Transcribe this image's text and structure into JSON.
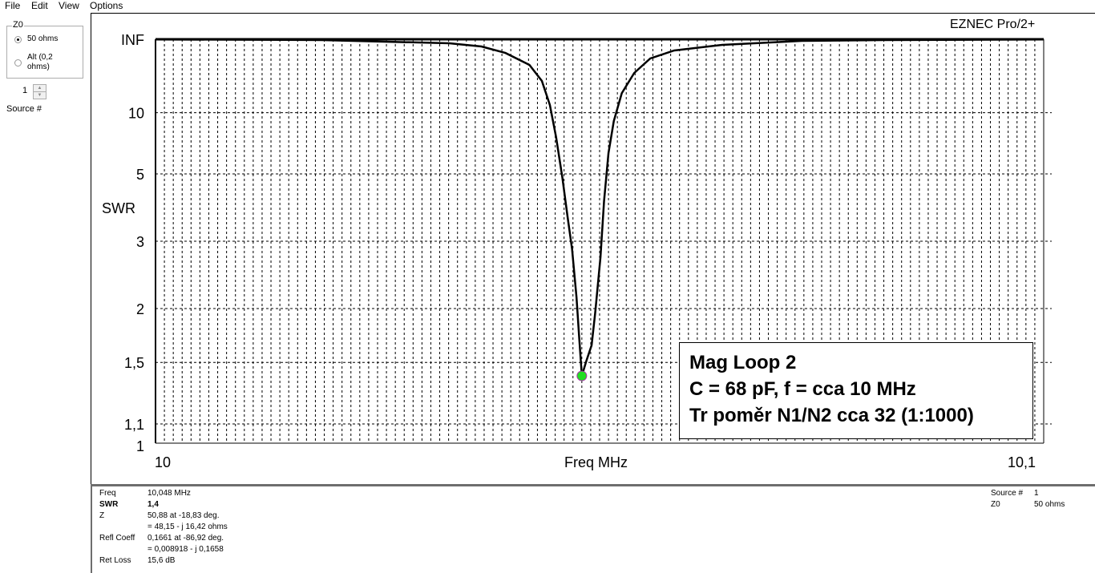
{
  "menu": [
    "File",
    "Edit",
    "View",
    "Options"
  ],
  "z0_panel": {
    "title": "Z0",
    "option_50": "50 ohms",
    "option_alt": "Alt (0,2 ohms)",
    "selected": "50 ohms",
    "source_value": "1",
    "source_label": "Source #"
  },
  "plot": {
    "brand": "EZNEC Pro/2+"
  },
  "annotation": [
    "Mag Loop 2",
    "C = 68 pF, f = cca 10 MHz",
    "Tr poměr N1/N2 cca 32 (1:1000)"
  ],
  "info": {
    "freq_label": "Freq",
    "freq": "10,048 MHz",
    "swr_label": "SWR",
    "swr": "1,4",
    "z_label": "Z",
    "z_polar": "50,88 at -18,83 deg.",
    "z_rect": "= 48,15 - j 16,42 ohms",
    "refl_label": "Refl Coeff",
    "refl_polar": "0,1661 at -86,92 deg.",
    "refl_rect": "= 0,008918 - j 0,1658",
    "retloss_label": "Ret Loss",
    "retloss": "15,6 dB",
    "source_label": "Source #",
    "source": "1",
    "z0_label": "Z0",
    "z0": "50 ohms"
  },
  "chart_data": {
    "type": "line",
    "xlabel": "Freq MHz",
    "ylabel": "SWR",
    "xlim": [
      10.0,
      10.1
    ],
    "x_tick_labels": [
      "10",
      "10,1"
    ],
    "y_ticks": [
      1,
      1.1,
      1.5,
      2,
      3,
      5,
      10,
      "INF"
    ],
    "y_tick_labels": [
      "1",
      "1,1",
      "1,5",
      "2",
      "3",
      "5",
      "10",
      "INF"
    ],
    "y_scale": "reflection-coefficient",
    "grid": true,
    "line_color": "#000000",
    "marker": {
      "x": 10.048,
      "y": 1.4,
      "color": "#22dd22"
    },
    "x": [
      10.0,
      10.0187,
      10.0331,
      10.0367,
      10.0394,
      10.0421,
      10.0435,
      10.0444,
      10.0451,
      10.0458,
      10.0464,
      10.0469,
      10.0474,
      10.0477,
      10.048,
      10.0485,
      10.0491,
      10.0495,
      10.0501,
      10.0505,
      10.051,
      10.0516,
      10.0525,
      10.0539,
      10.0557,
      10.0584,
      10.0638,
      10.0728,
      10.0819,
      10.1
    ],
    "y": [
      5000,
      1000,
      201,
      111,
      58,
      30.5,
      18.4,
      11.3,
      7.26,
      4.86,
      3.54,
      2.85,
      2.13,
      1.71,
      1.4,
      1.51,
      1.64,
      1.95,
      2.71,
      3.99,
      6.1,
      8.88,
      14.0,
      23,
      41,
      71,
      143,
      500,
      1000,
      5000
    ]
  }
}
